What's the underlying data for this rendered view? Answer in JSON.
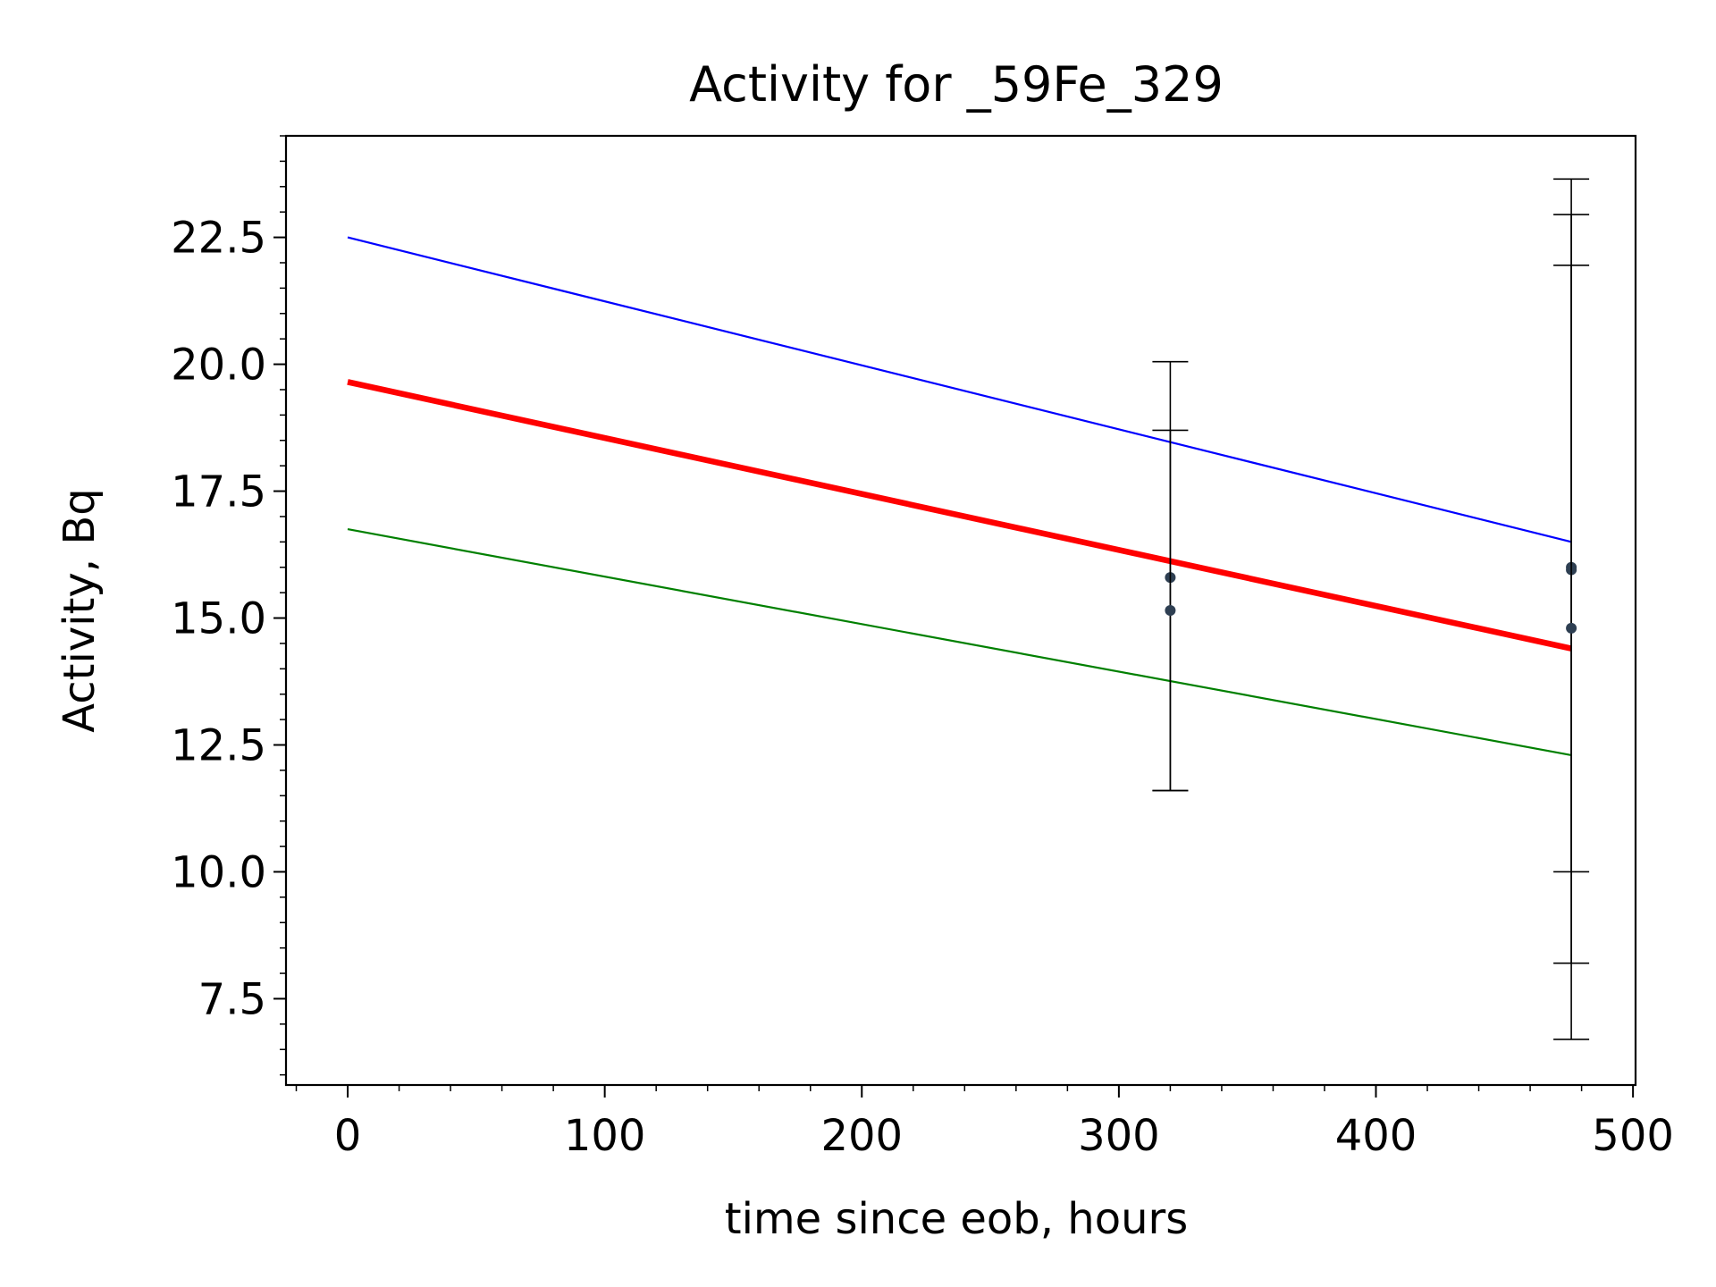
{
  "chart_data": {
    "type": "line",
    "title": "Activity for _59Fe_329",
    "xlabel": "time since eob, hours",
    "ylabel": "Activity, Bq",
    "xlim": [
      -24,
      501
    ],
    "ylim": [
      5.8,
      24.5
    ],
    "xticks": [
      0,
      100,
      200,
      300,
      400,
      500
    ],
    "xtick_labels": [
      "0",
      "100",
      "200",
      "300",
      "400",
      "500"
    ],
    "yticks": [
      7.5,
      10.0,
      12.5,
      15.0,
      17.5,
      20.0,
      22.5
    ],
    "ytick_labels": [
      "7.5",
      "10.0",
      "12.5",
      "15.0",
      "17.5",
      "20.0",
      "22.5"
    ],
    "x_minor_step": 20,
    "y_minor_step": 0.5,
    "grid": false,
    "lines": [
      {
        "points": [
          [
            0,
            22.5
          ],
          [
            476,
            16.5
          ]
        ],
        "color": "#0000ff",
        "width": 1
      },
      {
        "points": [
          [
            0,
            19.65
          ],
          [
            476,
            14.4
          ]
        ],
        "color": "#ff0000",
        "width": 3
      },
      {
        "points": [
          [
            0,
            16.75
          ],
          [
            476,
            12.3
          ]
        ],
        "color": "#008000",
        "width": 1
      }
    ],
    "points": [
      {
        "x": 320,
        "y": 15.8,
        "ylow": 11.6,
        "yhigh": 20.05
      },
      {
        "x": 320,
        "y": 15.15,
        "ylow": 11.6,
        "yhigh": 18.7
      },
      {
        "x": 476,
        "y": 16.0,
        "ylow": 8.2,
        "yhigh": 23.65
      },
      {
        "x": 476,
        "y": 15.95,
        "ylow": 10.0,
        "yhigh": 22.95
      },
      {
        "x": 476,
        "y": 14.8,
        "ylow": 6.7,
        "yhigh": 21.95
      }
    ],
    "marker_color": "#2e3f52",
    "errorbar_color": "#000000"
  }
}
